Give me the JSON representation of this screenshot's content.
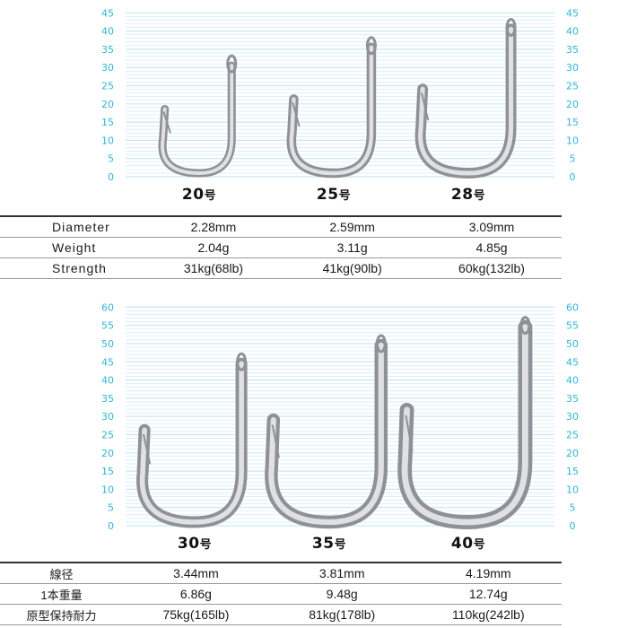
{
  "colors": {
    "scale": "#2db6d8",
    "lines": "#c9e6f0",
    "hook": "#b9bcc2",
    "text": "#111111"
  },
  "top": {
    "ticks": [
      "0",
      "5",
      "10",
      "15",
      "20",
      "25",
      "30",
      "35",
      "40",
      "45"
    ],
    "hooks": [
      {
        "name": "20",
        "suffix": "号",
        "height_mm": 32
      },
      {
        "name": "25",
        "suffix": "号",
        "height_mm": 37
      },
      {
        "name": "28",
        "suffix": "号",
        "height_mm": 42
      }
    ],
    "rows": [
      {
        "label": "Diameter",
        "values": [
          "2.28mm",
          "2.59mm",
          "3.09mm"
        ]
      },
      {
        "label": "Weight",
        "values": [
          "2.04g",
          "3.11g",
          "4.85g"
        ]
      },
      {
        "label": "Strength",
        "values": [
          "31kg(68lb)",
          "41kg(90lb)",
          "60kg(132lb)"
        ]
      }
    ]
  },
  "bottom": {
    "ticks": [
      "0",
      "5",
      "10",
      "15",
      "20",
      "25",
      "30",
      "35",
      "40",
      "45",
      "50",
      "55",
      "60"
    ],
    "hooks": [
      {
        "name": "30",
        "suffix": "号",
        "height_mm": 46
      },
      {
        "name": "35",
        "suffix": "号",
        "height_mm": 51
      },
      {
        "name": "40",
        "suffix": "号",
        "height_mm": 56
      }
    ],
    "rows": [
      {
        "label": "線径",
        "values": [
          "3.44mm",
          "3.81mm",
          "4.19mm"
        ]
      },
      {
        "label": "1本重量",
        "values": [
          "6.86g",
          "9.48g",
          "12.74g"
        ]
      },
      {
        "label": "原型保持耐力",
        "values": [
          "75kg(165lb)",
          "81kg(178lb)",
          "110kg(242lb)"
        ]
      }
    ]
  }
}
